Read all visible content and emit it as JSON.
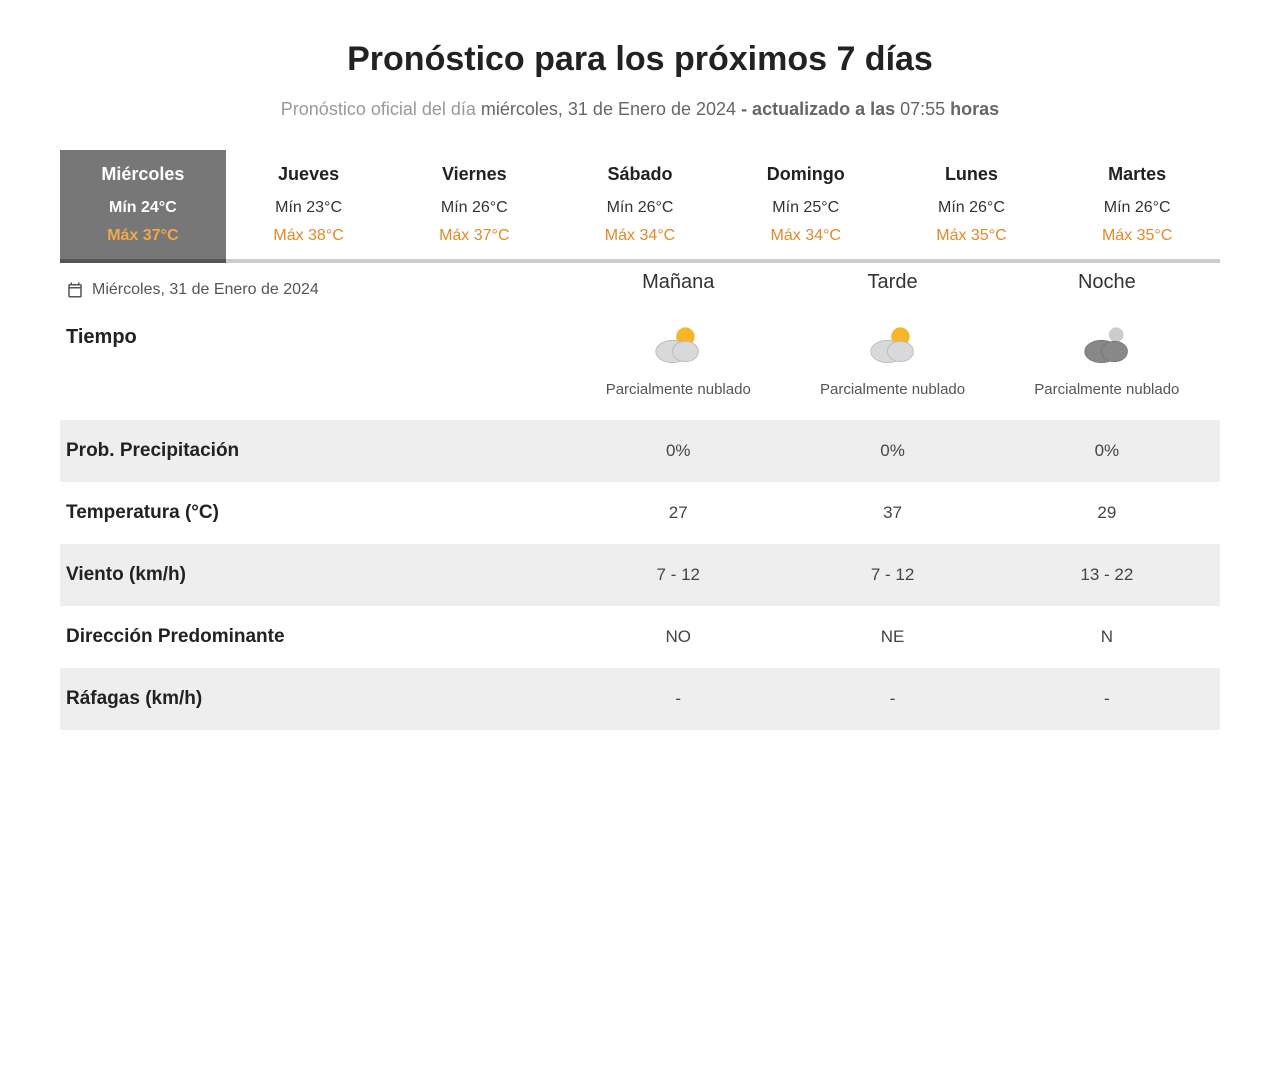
{
  "colors": {
    "accent_orange": "#e08a2a",
    "active_tab_bg": "#777777",
    "shade_row_bg": "#eeeeee",
    "tab_underline": "#cccccc",
    "active_underline": "#555555",
    "text_primary": "#222222",
    "text_muted": "#999999"
  },
  "header": {
    "title": "Pronóstico para los próximos 7 días",
    "sub_prefix": "Pronóstico oficial del día ",
    "sub_date": "miércoles, 31 de Enero de 2024",
    "sub_updated_prefix": " - actualizado a las ",
    "sub_time": "07:55",
    "sub_suffix": " horas"
  },
  "tabs": [
    {
      "day": "Miércoles",
      "min": "Mín 24°C",
      "max": "Máx 37°C",
      "active": true
    },
    {
      "day": "Jueves",
      "min": "Mín 23°C",
      "max": "Máx 38°C",
      "active": false
    },
    {
      "day": "Viernes",
      "min": "Mín 26°C",
      "max": "Máx 37°C",
      "active": false
    },
    {
      "day": "Sábado",
      "min": "Mín 26°C",
      "max": "Máx 34°C",
      "active": false
    },
    {
      "day": "Domingo",
      "min": "Mín 25°C",
      "max": "Máx 34°C",
      "active": false
    },
    {
      "day": "Lunes",
      "min": "Mín 26°C",
      "max": "Máx 35°C",
      "active": false
    },
    {
      "day": "Martes",
      "min": "Mín 26°C",
      "max": "Máx 35°C",
      "active": false
    }
  ],
  "selected_date": "Miércoles, 31 de Enero de 2024",
  "periods": {
    "morning": "Mañana",
    "afternoon": "Tarde",
    "night": "Noche"
  },
  "row_labels": {
    "weather": "Tiempo",
    "precip": "Prob. Precipitación",
    "temp": "Temperatura (°C)",
    "wind": "Viento (km/h)",
    "dir": "Dirección Predominante",
    "gust": "Ráfagas (km/h)"
  },
  "detail": {
    "conditions": {
      "morning": "Parcialmente nublado",
      "afternoon": "Parcialmente nublado",
      "night": "Parcialmente nublado"
    },
    "icon_types": {
      "morning": "partly-cloudy-day",
      "afternoon": "partly-cloudy-day",
      "night": "partly-cloudy-night"
    },
    "precip": {
      "morning": "0%",
      "afternoon": "0%",
      "night": "0%"
    },
    "temp": {
      "morning": "27",
      "afternoon": "37",
      "night": "29"
    },
    "wind": {
      "morning": "7 - 12",
      "afternoon": "7 - 12",
      "night": "13 - 22"
    },
    "dir": {
      "morning": "NO",
      "afternoon": "NE",
      "night": "N"
    },
    "gust": {
      "morning": "-",
      "afternoon": "-",
      "night": "-"
    }
  }
}
